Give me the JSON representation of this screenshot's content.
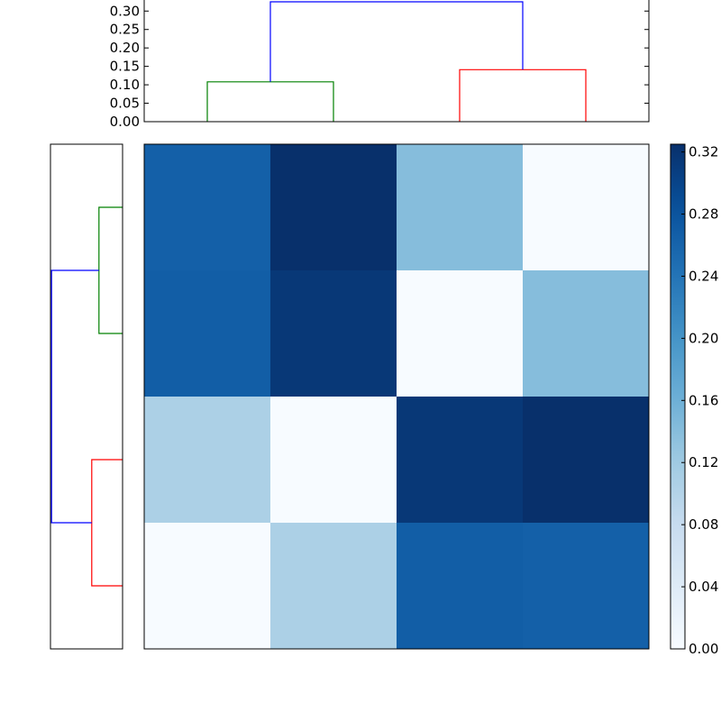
{
  "chart_data": [
    {
      "type": "dendrogram",
      "orientation": "top",
      "ylim": [
        0,
        0.33
      ],
      "yticks": [
        "0.00",
        "0.05",
        "0.10",
        "0.15",
        "0.20",
        "0.25",
        "0.30"
      ],
      "leaf_positions": [
        5,
        15,
        25,
        35
      ],
      "links": [
        {
          "x": [
            5,
            5,
            15,
            15
          ],
          "y": [
            0,
            0.108,
            0.108,
            0
          ],
          "color": "#008000"
        },
        {
          "x": [
            25,
            25,
            35,
            35
          ],
          "y": [
            0,
            0.141,
            0.141,
            0
          ],
          "color": "#ff0000"
        },
        {
          "x": [
            10,
            10,
            30,
            30
          ],
          "y": [
            0.108,
            0.325,
            0.325,
            0.141
          ],
          "color": "#0000ff"
        }
      ]
    },
    {
      "type": "dendrogram",
      "orientation": "left",
      "xlim": [
        0,
        0.33
      ],
      "leaf_positions": [
        5,
        15,
        25,
        35
      ],
      "links": [
        {
          "y": [
            5,
            5,
            15,
            15
          ],
          "x": [
            0,
            0.108,
            0.108,
            0
          ],
          "color": "#008000"
        },
        {
          "y": [
            25,
            25,
            35,
            35
          ],
          "x": [
            0,
            0.141,
            0.141,
            0
          ],
          "color": "#ff0000"
        },
        {
          "y": [
            10,
            10,
            30,
            30
          ],
          "x": [
            0.108,
            0.325,
            0.325,
            0.141
          ],
          "color": "#0000ff"
        }
      ]
    },
    {
      "type": "heatmap",
      "colormap": "Blues",
      "vmin": 0,
      "vmax": 0.325,
      "rows_top_to_bottom": [
        [
          0.265,
          0.325,
          0.141,
          0.0
        ],
        [
          0.268,
          0.315,
          0.0,
          0.141
        ],
        [
          0.108,
          0.0,
          0.315,
          0.325
        ],
        [
          0.0,
          0.108,
          0.268,
          0.265
        ]
      ],
      "colorbar": {
        "ticks": [
          "0.00",
          "0.04",
          "0.08",
          "0.12",
          "0.16",
          "0.20",
          "0.24",
          "0.28",
          "0.32"
        ]
      }
    }
  ]
}
